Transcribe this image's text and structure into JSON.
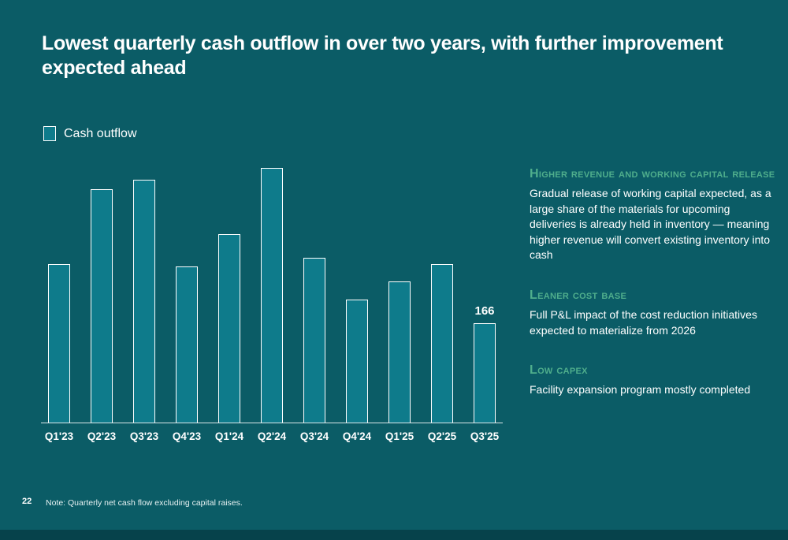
{
  "slide": {
    "title": "Lowest quarterly cash outflow in over two years, with further improvement expected ahead",
    "page_number": "22",
    "footnote": "Note: Quarterly net cash flow excluding capital raises."
  },
  "legend": {
    "label": "Cash outflow"
  },
  "chart_data": {
    "type": "bar",
    "title": "",
    "xlabel": "",
    "ylabel": "",
    "categories": [
      "Q1'23",
      "Q2'23",
      "Q3'23",
      "Q4'23",
      "Q1'24",
      "Q2'24",
      "Q3'24",
      "Q4'24",
      "Q1'25",
      "Q2'25",
      "Q3'25"
    ],
    "values": [
      265,
      390,
      405,
      260,
      315,
      425,
      275,
      205,
      235,
      265,
      166
    ],
    "value_labels": [
      null,
      null,
      null,
      null,
      null,
      null,
      null,
      null,
      null,
      null,
      "166"
    ],
    "ylim": [
      0,
      450
    ],
    "grid": false,
    "legend": [
      "Cash outflow"
    ],
    "legend_position": "top-left"
  },
  "sidebar": {
    "sections": [
      {
        "heading": "Higher revenue and working capital release",
        "body": "Gradual release of working capital expected, as a large share of the materials for upcoming deliveries is already held in inventory — meaning higher revenue will convert existing inventory into cash"
      },
      {
        "heading": "Leaner cost base",
        "body": "Full P&L impact of the cost reduction initiatives expected to materialize from 2026"
      },
      {
        "heading": "Low capex",
        "body": "Facility expansion program mostly completed"
      }
    ]
  },
  "colors": {
    "background": "#0B5C66",
    "bar_fill": "#0E7B8B",
    "bar_stroke": "#FFFFFF",
    "accent_green": "#4FAE8C",
    "footer_strip": "#06424B",
    "text": "#FFFFFF"
  }
}
